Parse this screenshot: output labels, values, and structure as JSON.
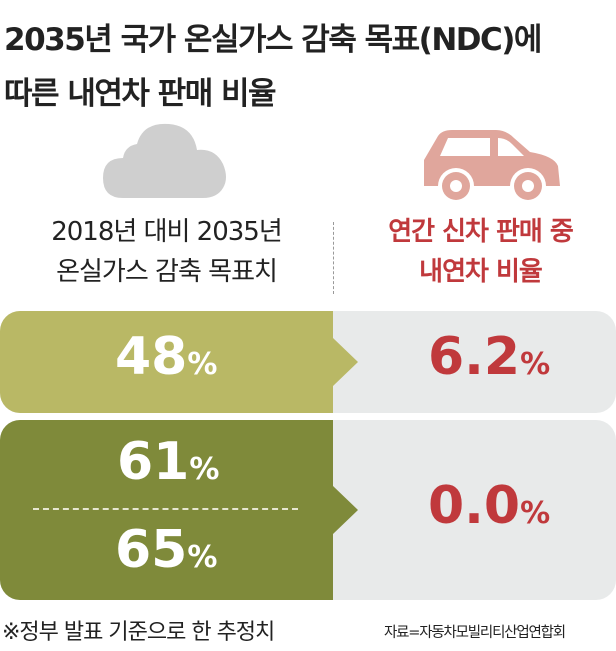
{
  "title": {
    "line1": "2035년 국가 온실가스 감축 목표(NDC)에",
    "line2": "따른 내연차 판매 비율"
  },
  "columns": {
    "left": {
      "icon": "cloud-icon",
      "line1": "2018년 대비 2035년",
      "line2": "온실가스 감축 목표치"
    },
    "right": {
      "icon": "car-icon",
      "line1": "연간 신차 판매 중",
      "line2": "내연차 비율"
    }
  },
  "rows": [
    {
      "targets": [
        {
          "value": "48",
          "unit": "%"
        }
      ],
      "ice_share": {
        "value": "6.2",
        "unit": "%"
      }
    },
    {
      "targets": [
        {
          "value": "61",
          "unit": "%"
        },
        {
          "value": "65",
          "unit": "%"
        }
      ],
      "ice_share": {
        "value": "0.0",
        "unit": "%"
      }
    }
  ],
  "footer": {
    "note": "※정부 발표 기준으로 한 추정치",
    "source": "자료=자동차모빌리티산업연합회"
  },
  "colors": {
    "row1": "#b9b865",
    "row2": "#7f8a3a",
    "panel": "#e8eaea",
    "accent": "#c0393c",
    "cloud": "#cfcfcf",
    "car": "#e0a69c"
  }
}
